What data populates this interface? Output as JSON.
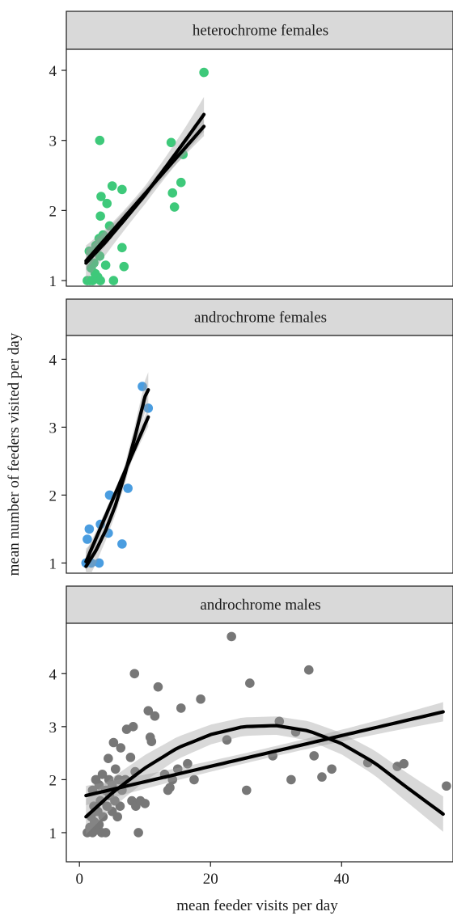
{
  "chart_data": {
    "type": "scatter",
    "xlabel": "mean feeder visits per day",
    "ylabel": "mean number of feeders visited per day",
    "xlim": [
      -2,
      57
    ],
    "x_ticks": [
      0,
      20,
      40
    ],
    "shared_x": true,
    "panels": [
      {
        "name": "heterochrome females",
        "color": "#3ec97a",
        "ylim": [
          0.92,
          4.3
        ],
        "y_ticks": [
          1,
          2,
          3,
          4
        ],
        "points": [
          [
            1.2,
            1.0
          ],
          [
            1.6,
            1.0
          ],
          [
            2.0,
            1.0
          ],
          [
            2.4,
            1.1
          ],
          [
            2.8,
            1.05
          ],
          [
            3.2,
            1.0
          ],
          [
            5.2,
            1.0
          ],
          [
            1.8,
            1.18
          ],
          [
            2.2,
            1.25
          ],
          [
            3.1,
            1.35
          ],
          [
            1.5,
            1.42
          ],
          [
            2.5,
            1.5
          ],
          [
            3.0,
            1.6
          ],
          [
            3.6,
            1.65
          ],
          [
            4.0,
            1.22
          ],
          [
            6.8,
            1.2
          ],
          [
            4.6,
            1.78
          ],
          [
            3.2,
            1.92
          ],
          [
            3.3,
            2.2
          ],
          [
            4.2,
            2.1
          ],
          [
            5.0,
            2.35
          ],
          [
            6.5,
            2.3
          ],
          [
            3.1,
            3.0
          ],
          [
            6.5,
            1.47
          ],
          [
            14.2,
            2.25
          ],
          [
            14.5,
            2.05
          ],
          [
            15.5,
            2.4
          ],
          [
            14.0,
            2.97
          ],
          [
            15.8,
            2.8
          ],
          [
            19.0,
            3.97
          ]
        ],
        "fit_linear": {
          "x": [
            1.0,
            19.0
          ],
          "y": [
            1.28,
            3.2
          ]
        },
        "fit_quadratic": {
          "x": [
            1.0,
            4.0,
            7.0,
            10.0,
            13.0,
            16.0,
            19.0
          ],
          "y": [
            1.25,
            1.55,
            1.88,
            2.22,
            2.6,
            2.98,
            3.37
          ]
        }
      },
      {
        "name": "androchrome females",
        "color": "#4a9de0",
        "ylim": [
          0.85,
          4.35
        ],
        "y_ticks": [
          1,
          2,
          3,
          4
        ],
        "points": [
          [
            1.0,
            1.0
          ],
          [
            1.8,
            1.0
          ],
          [
            3.0,
            1.0
          ],
          [
            1.2,
            1.35
          ],
          [
            1.5,
            1.5
          ],
          [
            3.2,
            1.57
          ],
          [
            4.4,
            1.44
          ],
          [
            4.6,
            2.0
          ],
          [
            6.5,
            1.28
          ],
          [
            7.4,
            2.1
          ],
          [
            9.6,
            3.6
          ],
          [
            10.5,
            3.28
          ]
        ],
        "fit_linear": {
          "x": [
            1.0,
            10.5
          ],
          "y": [
            1.02,
            3.15
          ]
        },
        "fit_quadratic": {
          "x": [
            1.0,
            2.5,
            4.0,
            5.5,
            7.0,
            8.5,
            10.0,
            10.5
          ],
          "y": [
            0.95,
            1.18,
            1.48,
            1.85,
            2.33,
            2.87,
            3.45,
            3.55
          ]
        }
      },
      {
        "name": "androchrome males",
        "color": "#777777",
        "ylim": [
          0.45,
          4.95
        ],
        "y_ticks": [
          1,
          2,
          3,
          4
        ],
        "points": [
          [
            1.2,
            1.0
          ],
          [
            1.6,
            1.1
          ],
          [
            2.0,
            1.0
          ],
          [
            2.3,
            1.2
          ],
          [
            2.6,
            1.05
          ],
          [
            3.0,
            1.15
          ],
          [
            3.4,
            1.0
          ],
          [
            4.0,
            1.0
          ],
          [
            1.8,
            1.3
          ],
          [
            2.2,
            1.5
          ],
          [
            2.8,
            1.4
          ],
          [
            3.2,
            1.6
          ],
          [
            3.6,
            1.3
          ],
          [
            4.2,
            1.5
          ],
          [
            4.6,
            1.7
          ],
          [
            5.0,
            1.4
          ],
          [
            5.4,
            1.6
          ],
          [
            5.8,
            1.3
          ],
          [
            6.2,
            1.5
          ],
          [
            2.0,
            1.8
          ],
          [
            2.5,
            2.0
          ],
          [
            3.0,
            1.9
          ],
          [
            3.5,
            2.1
          ],
          [
            4.0,
            1.8
          ],
          [
            4.5,
            2.0
          ],
          [
            5.0,
            1.9
          ],
          [
            5.5,
            2.2
          ],
          [
            6.0,
            2.0
          ],
          [
            6.5,
            1.8
          ],
          [
            7.0,
            2.0
          ],
          [
            5.2,
            2.7
          ],
          [
            6.3,
            2.6
          ],
          [
            7.2,
            2.95
          ],
          [
            7.8,
            2.42
          ],
          [
            8.2,
            3.0
          ],
          [
            4.4,
            2.4
          ],
          [
            8.5,
            2.15
          ],
          [
            8.0,
            1.6
          ],
          [
            8.6,
            1.5
          ],
          [
            9.3,
            1.6
          ],
          [
            10.0,
            1.55
          ],
          [
            8.4,
            4.0
          ],
          [
            9.0,
            1.0
          ],
          [
            10.5,
            3.3
          ],
          [
            10.8,
            2.8
          ],
          [
            11.0,
            2.72
          ],
          [
            11.5,
            3.2
          ],
          [
            12.0,
            3.75
          ],
          [
            13.0,
            2.1
          ],
          [
            13.5,
            1.8
          ],
          [
            13.8,
            1.85
          ],
          [
            14.2,
            2.0
          ],
          [
            15.0,
            2.2
          ],
          [
            15.5,
            3.35
          ],
          [
            16.5,
            2.3
          ],
          [
            17.5,
            2.0
          ],
          [
            18.5,
            3.52
          ],
          [
            22.5,
            2.75
          ],
          [
            23.2,
            4.7
          ],
          [
            25.5,
            1.8
          ],
          [
            26.0,
            3.82
          ],
          [
            29.5,
            2.45
          ],
          [
            30.5,
            3.1
          ],
          [
            32.3,
            2.0
          ],
          [
            33.0,
            2.9
          ],
          [
            35.0,
            4.07
          ],
          [
            35.8,
            2.45
          ],
          [
            37.0,
            2.05
          ],
          [
            38.5,
            2.2
          ],
          [
            44.0,
            2.32
          ],
          [
            48.5,
            2.25
          ],
          [
            49.5,
            2.3
          ],
          [
            56.0,
            1.88
          ]
        ],
        "fit_linear": {
          "x": [
            1.0,
            55.5
          ],
          "y": [
            1.7,
            3.28
          ]
        },
        "fit_quadratic": {
          "x": [
            1.0,
            5.0,
            10.0,
            15.0,
            20.0,
            25.0,
            30.0,
            35.0,
            40.0,
            45.0,
            50.0,
            55.5
          ],
          "y": [
            1.3,
            1.75,
            2.22,
            2.6,
            2.85,
            3.0,
            3.02,
            2.92,
            2.68,
            2.32,
            1.85,
            1.35
          ]
        }
      }
    ]
  }
}
